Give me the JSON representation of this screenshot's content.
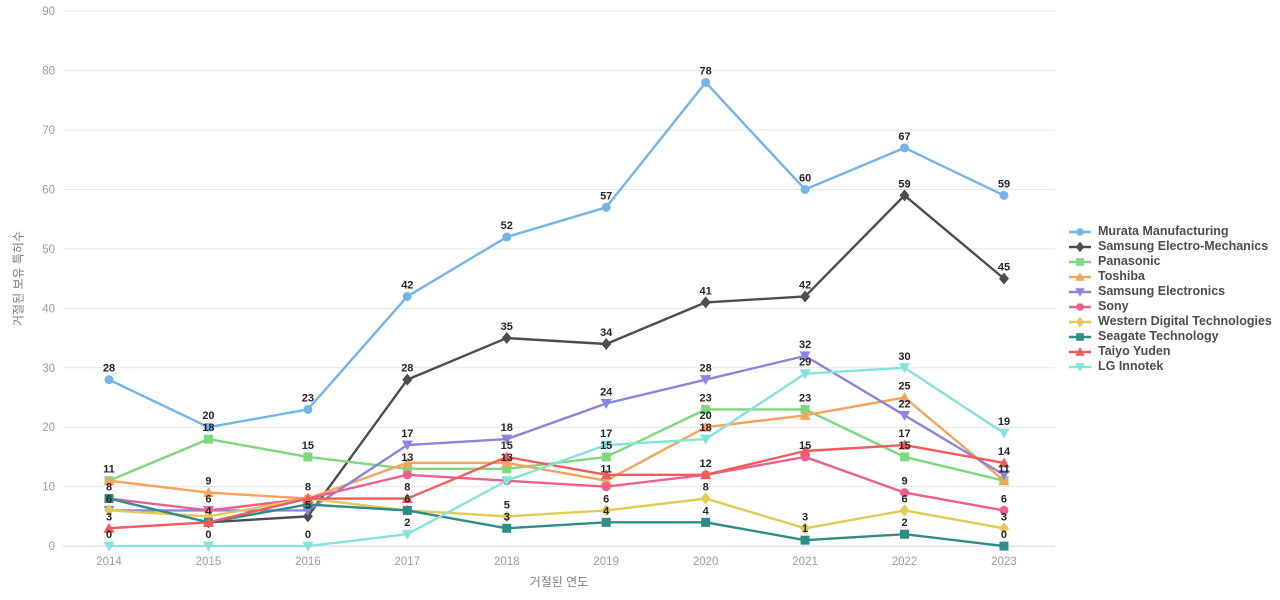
{
  "chart_data": {
    "type": "line",
    "title": "",
    "xlabel": "거절된 연도",
    "ylabel": "거절된 보유 특허수",
    "x": [
      2014,
      2015,
      2016,
      2017,
      2018,
      2019,
      2020,
      2021,
      2022,
      2023
    ],
    "ylim": [
      0,
      90
    ],
    "yticks": [
      0,
      10,
      20,
      30,
      40,
      50,
      60,
      70,
      80,
      90
    ],
    "grid": "horizontal",
    "legend_position": "right",
    "series": [
      {
        "name": "Murata Manufacturing",
        "color": "#74b5e8",
        "marker": "circle",
        "values": [
          28,
          20,
          23,
          42,
          52,
          57,
          78,
          60,
          67,
          59
        ],
        "label_shown": [
          true,
          true,
          true,
          true,
          true,
          true,
          true,
          true,
          true,
          true
        ]
      },
      {
        "name": "Samsung Electro-Mechanics",
        "color": "#4d4d4d",
        "marker": "diamond",
        "values": [
          null,
          4,
          5,
          28,
          35,
          34,
          41,
          42,
          59,
          45
        ],
        "label_shown": [
          false,
          true,
          true,
          true,
          true,
          true,
          true,
          true,
          true,
          true
        ]
      },
      {
        "name": "Panasonic",
        "color": "#7ed87d",
        "marker": "square",
        "values": [
          11,
          18,
          15,
          13,
          13,
          15,
          23,
          23,
          15,
          11
        ],
        "label_shown": [
          true,
          true,
          true,
          true,
          true,
          true,
          true,
          true,
          true,
          true
        ]
      },
      {
        "name": "Toshiba",
        "color": "#f6a45c",
        "marker": "triangle-up",
        "values": [
          11,
          9,
          8,
          14,
          14,
          11,
          20,
          22,
          25,
          11
        ],
        "label_shown": [
          false,
          true,
          true,
          false,
          false,
          true,
          true,
          false,
          true,
          false
        ]
      },
      {
        "name": "Samsung Electronics",
        "color": "#8886dd",
        "marker": "triangle-down",
        "values": [
          6,
          6,
          6,
          17,
          18,
          24,
          28,
          32,
          22,
          12
        ],
        "label_shown": [
          true,
          true,
          false,
          true,
          true,
          true,
          true,
          true,
          true,
          false
        ]
      },
      {
        "name": "Sony",
        "color": "#ee5f90",
        "marker": "circle",
        "values": [
          8,
          6,
          8,
          12,
          11,
          10,
          12,
          15,
          9,
          6
        ],
        "label_shown": [
          true,
          false,
          false,
          false,
          false,
          false,
          true,
          true,
          true,
          true
        ]
      },
      {
        "name": "Western Digital Technologies",
        "color": "#e2ca57",
        "marker": "diamond",
        "values": [
          6,
          5,
          8,
          6,
          5,
          6,
          8,
          3,
          6,
          3
        ],
        "label_shown": [
          false,
          false,
          false,
          true,
          true,
          true,
          true,
          true,
          true,
          true
        ]
      },
      {
        "name": "Seagate Technology",
        "color": "#2f8c86",
        "marker": "square",
        "values": [
          8,
          4,
          7,
          6,
          3,
          4,
          4,
          1,
          2,
          0
        ],
        "label_shown": [
          false,
          false,
          false,
          false,
          true,
          true,
          true,
          true,
          true,
          true
        ]
      },
      {
        "name": "Taiyo Yuden",
        "color": "#ee5c5c",
        "marker": "triangle-up",
        "values": [
          3,
          4,
          8,
          8,
          15,
          12,
          12,
          16,
          17,
          14
        ],
        "label_shown": [
          true,
          false,
          false,
          true,
          true,
          false,
          false,
          false,
          true,
          true
        ]
      },
      {
        "name": "LG Innotek",
        "color": "#84e3dc",
        "marker": "triangle-down",
        "values": [
          0,
          0,
          0,
          2,
          11,
          17,
          18,
          29,
          30,
          19
        ],
        "label_shown": [
          true,
          true,
          true,
          true,
          false,
          true,
          true,
          true,
          true,
          true
        ]
      }
    ]
  }
}
